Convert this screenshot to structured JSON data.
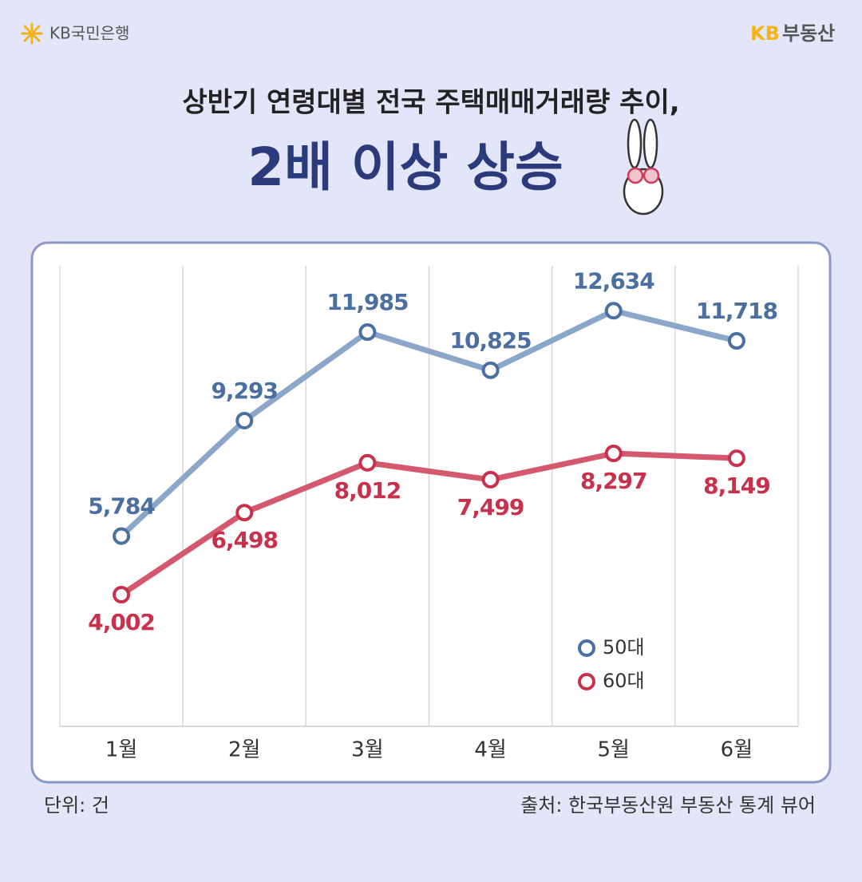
{
  "header": {
    "bank": "KB국민은행",
    "brand_kb": "KB",
    "brand_name": "부동산",
    "subtitle": "상반기 연령대별 전국 주택매매거래량 추이,",
    "headline": "2배 이상 상승"
  },
  "chart_data": {
    "type": "line",
    "categories": [
      "1월",
      "2월",
      "3월",
      "4월",
      "5월",
      "6월"
    ],
    "series": [
      {
        "name": "50대",
        "color": "#8ba6c9",
        "label_color": "#4a6fa0",
        "values": [
          5784,
          9293,
          11985,
          10825,
          12634,
          11718
        ],
        "value_labels": [
          "5,784",
          "9,293",
          "11,985",
          "10,825",
          "12,634",
          "11,718"
        ]
      },
      {
        "name": "60대",
        "color": "#d5596e",
        "label_color": "#c8314b",
        "values": [
          4002,
          6498,
          8012,
          7499,
          8297,
          8149
        ],
        "value_labels": [
          "4,002",
          "6,498",
          "8,012",
          "7,499",
          "8,297",
          "8,149"
        ]
      }
    ],
    "ylim": [
      0,
      14000
    ],
    "legend": "lower right",
    "grid": true
  },
  "footer": {
    "unit": "단위: 건",
    "source": "출처: 한국부동산원 부동산 통계 뷰어"
  }
}
